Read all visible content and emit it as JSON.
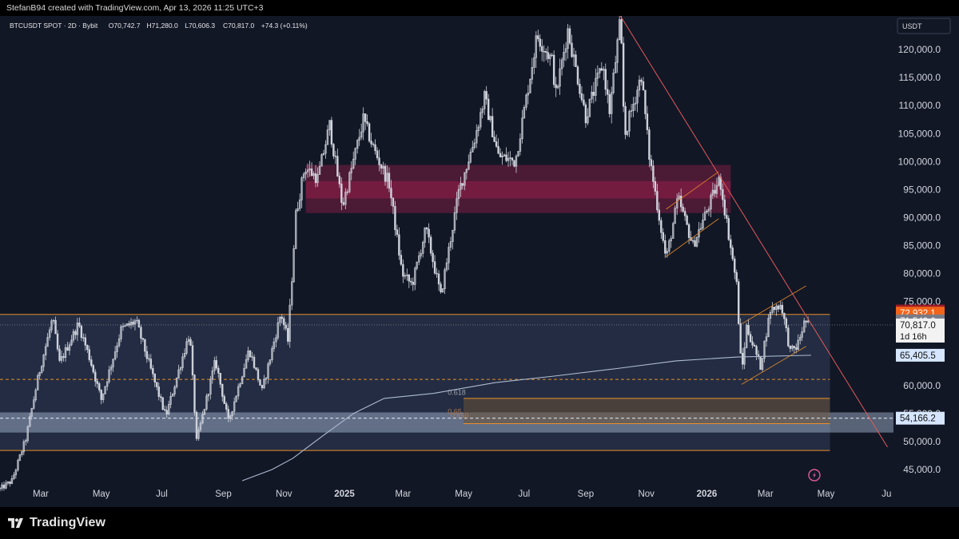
{
  "header": {
    "credit": "StefanB94 created with TradingView.com, Apr 13, 2026 11:25 UTC+3"
  },
  "footer": {
    "brand": "TradingView"
  },
  "colors": {
    "background": "#121726",
    "candle": "#cfd3dc",
    "resistance_zone": "#e0245e",
    "range_zone": "#3a4766",
    "support_zone": "#b9cde6",
    "demand_zone": "#6b5236",
    "orange_line": "#e88f2a",
    "trendline": "#e25a5a",
    "moving_average": "#aebbd1",
    "badge_red": "#9e1c25",
    "badge_orange": "#f26419",
    "badge_grey": "#787b86",
    "badge_white": "#f2f2f2",
    "badge_blue": "#d6e6ff"
  },
  "chart_data": {
    "type": "candlestick",
    "legend": {
      "symbol": "BTCUSDT SPOT · 2D · Bybit",
      "open": "O70,742.7",
      "high": "H71,280.0",
      "low": "L70,606.3",
      "close": "C70,817.0",
      "change": "+74.3 (+0.11%)"
    },
    "currency": "USDT",
    "y_axis": {
      "min": 42000,
      "max": 126000,
      "ticks": [
        "45,000.0",
        "50,000.0",
        "55,000.0",
        "60,000.0",
        "65,000.0",
        "70,000.0",
        "75,000.0",
        "80,000.0",
        "85,000.0",
        "90,000.0",
        "95,000.0",
        "100,000.0",
        "105,000.0",
        "110,000.0",
        "115,000.0",
        "120,000.0"
      ]
    },
    "x_axis": {
      "range": [
        "2024-01-20",
        "2026-07-08"
      ],
      "ticks": [
        {
          "label": "Mar",
          "date": "2024-03-01"
        },
        {
          "label": "May",
          "date": "2024-05-01"
        },
        {
          "label": "Jul",
          "date": "2024-07-01"
        },
        {
          "label": "Sep",
          "date": "2024-09-01"
        },
        {
          "label": "Nov",
          "date": "2024-11-01"
        },
        {
          "label": "2025",
          "date": "2025-01-01",
          "bold": true
        },
        {
          "label": "Mar",
          "date": "2025-03-01"
        },
        {
          "label": "May",
          "date": "2025-05-01"
        },
        {
          "label": "Jul",
          "date": "2025-07-01"
        },
        {
          "label": "Sep",
          "date": "2025-09-01"
        },
        {
          "label": "Nov",
          "date": "2025-11-01"
        },
        {
          "label": "2026",
          "date": "2026-01-01",
          "bold": true
        },
        {
          "label": "Mar",
          "date": "2026-03-01"
        },
        {
          "label": "May",
          "date": "2026-05-01"
        },
        {
          "label": "Ju",
          "date": "2026-07-01"
        }
      ]
    },
    "price_path": [
      [
        "2024-01-20",
        41500
      ],
      [
        "2024-02-01",
        43000
      ],
      [
        "2024-02-15",
        50500
      ],
      [
        "2024-02-28",
        62000
      ],
      [
        "2024-03-13",
        72000
      ],
      [
        "2024-03-20",
        64000
      ],
      [
        "2024-04-08",
        71000
      ],
      [
        "2024-04-20",
        64500
      ],
      [
        "2024-05-01",
        57500
      ],
      [
        "2024-05-21",
        70000
      ],
      [
        "2024-06-05",
        71500
      ],
      [
        "2024-06-24",
        60500
      ],
      [
        "2024-07-05",
        54500
      ],
      [
        "2024-07-29",
        69500
      ],
      [
        "2024-08-05",
        50000
      ],
      [
        "2024-08-24",
        64500
      ],
      [
        "2024-09-06",
        53500
      ],
      [
        "2024-09-27",
        66500
      ],
      [
        "2024-10-10",
        59000
      ],
      [
        "2024-10-29",
        73000
      ],
      [
        "2024-11-05",
        68000
      ],
      [
        "2024-11-13",
        90500
      ],
      [
        "2024-11-22",
        99000
      ],
      [
        "2024-12-05",
        97000
      ],
      [
        "2024-12-17",
        106500
      ],
      [
        "2024-12-30",
        92000
      ],
      [
        "2025-01-20",
        107500
      ],
      [
        "2025-01-31",
        102000
      ],
      [
        "2025-02-15",
        96000
      ],
      [
        "2025-02-28",
        80000
      ],
      [
        "2025-03-10",
        78000
      ],
      [
        "2025-03-24",
        88000
      ],
      [
        "2025-04-08",
        76000
      ],
      [
        "2025-04-26",
        94500
      ],
      [
        "2025-05-12",
        104000
      ],
      [
        "2025-05-22",
        111500
      ],
      [
        "2025-06-05",
        101000
      ],
      [
        "2025-06-22",
        100000
      ],
      [
        "2025-07-14",
        122500
      ],
      [
        "2025-07-29",
        118000
      ],
      [
        "2025-08-02",
        112000
      ],
      [
        "2025-08-14",
        123500
      ],
      [
        "2025-09-01",
        108000
      ],
      [
        "2025-09-18",
        117500
      ],
      [
        "2025-09-25",
        109000
      ],
      [
        "2025-10-06",
        125500
      ],
      [
        "2025-10-10",
        104500
      ],
      [
        "2025-10-27",
        115500
      ],
      [
        "2025-11-04",
        101000
      ],
      [
        "2025-11-21",
        82500
      ],
      [
        "2025-12-03",
        93500
      ],
      [
        "2025-12-18",
        85000
      ],
      [
        "2026-01-14",
        97000
      ],
      [
        "2026-01-31",
        78000
      ],
      [
        "2026-02-05",
        62000
      ],
      [
        "2026-02-10",
        70500
      ],
      [
        "2026-02-24",
        63500
      ],
      [
        "2026-03-06",
        73500
      ],
      [
        "2026-03-17",
        74500
      ],
      [
        "2026-03-26",
        66000
      ],
      [
        "2026-04-02",
        67000
      ],
      [
        "2026-04-10",
        71700
      ],
      [
        "2026-04-13",
        70817
      ]
    ],
    "zones": [
      {
        "name": "supply-zone",
        "from": "2024-11-23",
        "to": "2026-01-25",
        "low": 90800,
        "high": 99400
      },
      {
        "name": "supply-zone-core",
        "from": "2024-11-23",
        "to": "2026-01-25",
        "low": 93400,
        "high": 96500
      },
      {
        "name": "range-box",
        "from": "2024-01-20",
        "to": "2026-05-05",
        "low": 48400,
        "high": 72700
      },
      {
        "name": "support-band",
        "from": "2024-01-01",
        "to": "2026-07-08",
        "low": 51600,
        "high": 55200
      },
      {
        "name": "fib-zone",
        "from": "2025-05-01",
        "to": "2026-05-05",
        "low": 53200,
        "high": 57700
      }
    ],
    "levels": [
      {
        "name": "range-high",
        "price": 72700,
        "from": "2024-01-20",
        "to": "2026-05-05"
      },
      {
        "name": "range-low",
        "price": 48400,
        "from": "2024-01-20",
        "to": "2026-05-05"
      },
      {
        "name": "mid-dashed",
        "price": 61100,
        "from": "2024-01-20",
        "to": "2026-05-05",
        "dashed": true
      },
      {
        "name": "band-dashed",
        "price": 54166.2,
        "from": "2024-01-01",
        "to": "2026-07-08",
        "dashed": true
      }
    ],
    "fib_labels": [
      {
        "text": "0.618",
        "date": "2025-04-15",
        "price": 58300
      },
      {
        "text": "0.65",
        "date": "2025-04-15",
        "price": 54900
      },
      {
        "text": "0.650",
        "date": "2025-04-18",
        "price": 54200
      }
    ],
    "trendline": {
      "from": [
        "2025-10-06",
        126000
      ],
      "to": [
        "2026-07-02",
        49000
      ]
    },
    "channels": [
      {
        "name": "bear-flag-upper",
        "from": [
          "2025-11-21",
          91500
        ],
        "to": [
          "2026-01-13",
          98200
        ]
      },
      {
        "name": "bear-flag-lower",
        "from": [
          "2025-11-21",
          83000
        ],
        "to": [
          "2026-01-13",
          89800
        ]
      },
      {
        "name": "flag-2-upper",
        "from": [
          "2026-02-05",
          71000
        ],
        "to": [
          "2026-04-11",
          77800
        ]
      },
      {
        "name": "flag-2-lower",
        "from": [
          "2026-02-05",
          60200
        ],
        "to": [
          "2026-04-11",
          67000
        ]
      }
    ],
    "moving_average": [
      [
        "2024-09-20",
        43000
      ],
      [
        "2024-10-20",
        45000
      ],
      [
        "2024-11-10",
        47000
      ],
      [
        "2024-12-10",
        51000
      ],
      [
        "2025-01-10",
        55000
      ],
      [
        "2025-02-10",
        57700
      ],
      [
        "2025-04-01",
        58600
      ],
      [
        "2025-06-01",
        60500
      ],
      [
        "2025-08-01",
        61700
      ],
      [
        "2025-10-01",
        63000
      ],
      [
        "2025-12-01",
        64400
      ],
      [
        "2026-02-01",
        65100
      ],
      [
        "2026-04-16",
        65405
      ]
    ],
    "price_badges": [
      {
        "value": "73,300.8",
        "price": 73300.8,
        "kind": "red"
      },
      {
        "value": "72,932.1",
        "price": 72932.1,
        "kind": "orange"
      },
      {
        "value": "71,543.0",
        "price": 71543.0,
        "kind": "grey"
      },
      {
        "value": "70,817.0",
        "price": 70817.0,
        "kind": "white",
        "sub": "1d 16h"
      },
      {
        "value": "65,405.5",
        "price": 65405.5,
        "kind": "blue"
      },
      {
        "value": "54,166.2",
        "price": 54166.2,
        "kind": "blue"
      }
    ],
    "last_price": 70817.0
  }
}
